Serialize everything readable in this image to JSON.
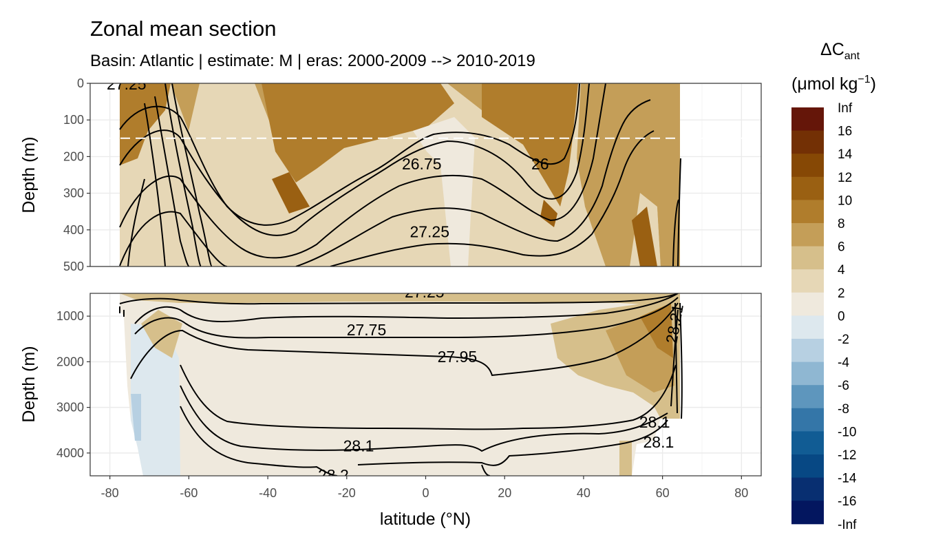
{
  "title": "Zonal mean section",
  "subtitle": "Basin: Atlantic | estimate: M  | eras: 2000-2009 --> 2010-2019",
  "chart_data": {
    "type": "heatmap",
    "description_variable": "anthropogenic carbon change (contoured sections) with isopycnal contour lines",
    "xlabel": "latitude (°N)",
    "ylabel": "Depth (m)",
    "xlim": [
      -85,
      85
    ],
    "x_ticks": [
      -80,
      -60,
      -40,
      -20,
      0,
      20,
      40,
      60,
      80
    ],
    "data_lat_range": [
      -77.5,
      64.5
    ],
    "mixed_layer_reference_depth": 150,
    "panels": [
      {
        "name": "upper",
        "ylim": [
          0,
          500
        ],
        "y_ticks": [
          0,
          100,
          200,
          300,
          400,
          500
        ]
      },
      {
        "name": "lower",
        "ylim": [
          500,
          4500
        ],
        "y_ticks": [
          1000,
          2000,
          3000,
          4000
        ]
      }
    ],
    "legend": {
      "title_line1": "ΔC",
      "title_sub": "ant",
      "title_line2": "(μmol kg",
      "title_sup": "−1",
      "title_close": ")",
      "breaks": [
        "Inf",
        "16",
        "14",
        "12",
        "10",
        "8",
        "6",
        "4",
        "2",
        "0",
        "-2",
        "-4",
        "-6",
        "-8",
        "-10",
        "-12",
        "-14",
        "-16",
        "-Inf"
      ],
      "colors": [
        "#651609",
        "#733005",
        "#864805",
        "#9a6012",
        "#b07d2c",
        "#c49e58",
        "#d6bf8b",
        "#e6d7b6",
        "#efe9dd",
        "#dde8ee",
        "#b7d0e2",
        "#8fb7d2",
        "#5e96bd",
        "#3476a8",
        "#115c94",
        "#074884",
        "#082f71",
        "#03165f"
      ]
    },
    "contour_labels": [
      {
        "text": "26.75",
        "panel": "upper",
        "lat": -1,
        "depth": 220
      },
      {
        "text": "26",
        "panel": "upper",
        "lat": 29,
        "depth": 220
      },
      {
        "text": "27.25",
        "panel": "upper",
        "lat": 1,
        "depth": 405
      },
      {
        "text": "27.75",
        "panel": "lower",
        "lat": -15,
        "depth": 1300
      },
      {
        "text": "27.95",
        "panel": "lower",
        "lat": 8,
        "depth": 1890
      },
      {
        "text": "28.1",
        "panel": "lower",
        "lat": -17,
        "depth": 3840
      },
      {
        "text": "28.1",
        "panel": "lower",
        "lat": 58,
        "depth": 3320
      },
      {
        "text": "28.1",
        "panel": "lower",
        "lat": 59,
        "depth": 3760
      }
    ]
  }
}
